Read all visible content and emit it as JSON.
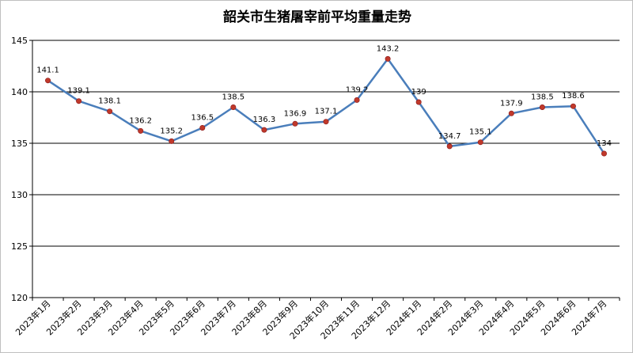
{
  "chart_data": {
    "type": "line",
    "title": "韶关市生猪屠宰前平均重量走势",
    "xlabel": "",
    "ylabel": "",
    "categories": [
      "2023年1月",
      "2023年2月",
      "2023年3月",
      "2023年4月",
      "2023年5月",
      "2023年6月",
      "2023年7月",
      "2023年8月",
      "2023年9月",
      "2023年10月",
      "2023年11月",
      "2023年12月",
      "2024年1月",
      "2024年2月",
      "2024年3月",
      "2024年4月",
      "2024年5月",
      "2024年6月",
      "2024年7月"
    ],
    "series": [
      {
        "name": "",
        "values": [
          141.1,
          139.1,
          138.1,
          136.2,
          135.2,
          136.5,
          138.5,
          136.3,
          136.9,
          137.1,
          139.2,
          143.2,
          139,
          134.7,
          135.1,
          137.9,
          138.5,
          138.6,
          134
        ]
      }
    ],
    "data_labels": [
      "141.1",
      "139.1",
      "138.1",
      "136.2",
      "135.2",
      "136.5",
      "138.5",
      "136.3",
      "136.9",
      "137.1",
      "139.2",
      "143.2",
      "139",
      "134.7",
      "135.1",
      "137.9",
      "138.5",
      "138.6",
      "134"
    ],
    "ylim": [
      120,
      145
    ],
    "yticks": [
      120,
      125,
      130,
      135,
      140,
      145
    ],
    "grid": "horizontal",
    "legend": "none",
    "colors": {
      "line": "#4a7ebb",
      "marker_fill": "#c0392b",
      "gridline": "#000000",
      "axis": "#000000"
    }
  }
}
